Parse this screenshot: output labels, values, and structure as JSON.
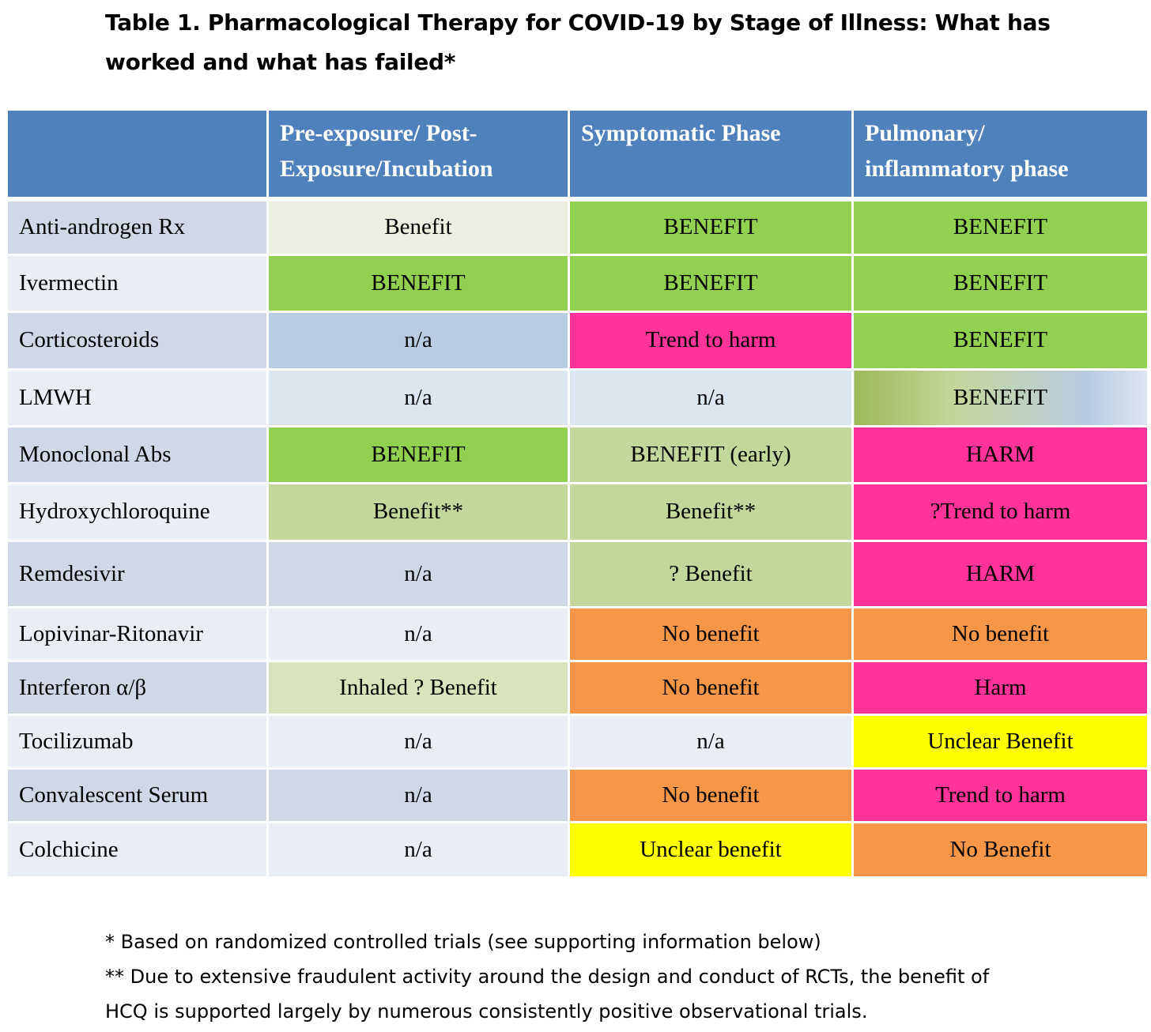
{
  "title_line1": "Table 1. Pharmacological Therapy for COVID-19 by Stage of Illness: What has",
  "title_line2": "worked and what has failed*",
  "headers": [
    "",
    "Pre-exposure/ Post-Exposure/Incubation",
    "Symptomatic Phase",
    "Pulmonary/ inflammatory phase"
  ],
  "header_lines": [
    [
      "",
      ""
    ],
    [
      "Pre-exposure/ Post-",
      "Exposure/Incubation"
    ],
    [
      "Symptomatic Phase",
      ""
    ],
    [
      "Pulmonary/",
      "inflammatory phase"
    ]
  ],
  "rows": [
    {
      "therapy": "Anti-androgen Rx",
      "cells": [
        "Benefit",
        "BENEFIT",
        "BENEFIT"
      ],
      "colors": [
        "#eaefe0",
        "#92d050",
        "#92d050"
      ]
    },
    {
      "therapy": "Ivermectin",
      "cells": [
        "BENEFIT",
        "BENEFIT",
        "BENEFIT"
      ],
      "colors": [
        "#92d050",
        "#92d050",
        "#92d050"
      ]
    },
    {
      "therapy": "Corticosteroids",
      "cells": [
        "n/a",
        "Trend to harm",
        "BENEFIT"
      ],
      "colors": [
        "#b8cce4",
        "#ff3399",
        "#92d050"
      ]
    },
    {
      "therapy": "LMWH",
      "cells": [
        "n/a",
        "n/a",
        "BENEFIT"
      ],
      "colors": [
        "#dce6f1",
        "#dce6f1",
        "linear-gradient(90deg, #9bbb59 0%, #c4d69b 35%, #b8cce4 80%, #dce6f1 100%)"
      ]
    },
    {
      "therapy": "Monoclonal Abs",
      "cells": [
        "BENEFIT",
        "BENEFIT (early)",
        "HARM"
      ],
      "colors": [
        "#92d050",
        "#c4d79b",
        "#ff3399"
      ]
    },
    {
      "therapy": "Hydroxychloroquine",
      "cells": [
        "Benefit**",
        "Benefit**",
        "?Trend to harm"
      ],
      "colors": [
        "#c4d79b",
        "#c4d79b",
        "#ff3399"
      ]
    },
    {
      "therapy": "Remdesivir",
      "cells": [
        "n/a",
        "? Benefit",
        "HARM"
      ],
      "colors": [
        "#d0d8e8",
        "#c4d79b",
        "#ff3399"
      ]
    },
    {
      "therapy": "Lopivinar-Ritonavir",
      "cells": [
        "n/a",
        "No benefit",
        "No benefit"
      ],
      "colors": [
        "#e9edf4",
        "#f79646",
        "#f79646"
      ]
    },
    {
      "therapy": "Interferon α/β",
      "cells": [
        "Inhaled ? Benefit",
        "No benefit",
        "Harm"
      ],
      "colors": [
        "#d8e4bc",
        "#f79646",
        "#ff3399"
      ]
    },
    {
      "therapy": "Tocilizumab",
      "cells": [
        "n/a",
        "n/a",
        "Unclear Benefit"
      ],
      "colors": [
        "#e9edf4",
        "#e9edf4",
        "#ffff00"
      ]
    },
    {
      "therapy": "Convalescent Serum",
      "cells": [
        "n/a",
        "No benefit",
        "Trend to harm"
      ],
      "colors": [
        "#d0d8e8",
        "#f79646",
        "#ff3399"
      ]
    },
    {
      "therapy": "Colchicine",
      "cells": [
        "n/a",
        "Unclear benefit",
        "No Benefit"
      ],
      "colors": [
        "#e9edf4",
        "#ffff00",
        "#f79646"
      ]
    }
  ],
  "footnotes": [
    "* Based on randomized controlled trials (see supporting information below)",
    "** Due to extensive fraudulent activity around the design and conduct of RCTs, the benefit of",
    "HCQ is supported largely by numerous consistently positive observational trials."
  ]
}
